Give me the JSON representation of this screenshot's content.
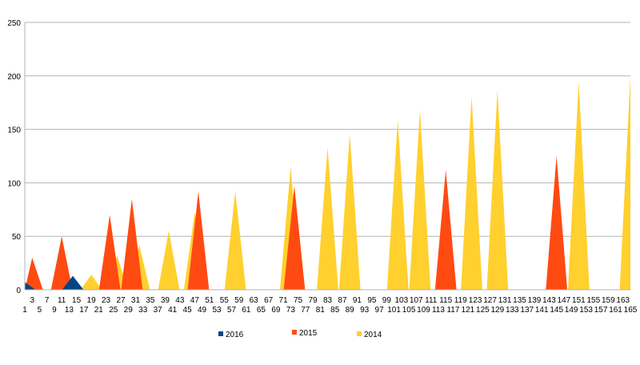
{
  "chart_data": {
    "type": "area",
    "x_range": [
      1,
      165
    ],
    "x_tick_labels_bottom": [
      "1",
      "5",
      "9",
      "13",
      "17",
      "21",
      "25",
      "29",
      "33",
      "37",
      "41",
      "45",
      "49",
      "53",
      "57",
      "61",
      "65",
      "69",
      "73",
      "77",
      "81",
      "85",
      "89",
      "93",
      "97",
      "101",
      "105",
      "109",
      "113",
      "117",
      "121",
      "125",
      "129",
      "133",
      "137",
      "141",
      "145",
      "149",
      "153",
      "157",
      "161",
      "165"
    ],
    "x_tick_labels_top": [
      "3",
      "7",
      "11",
      "15",
      "19",
      "23",
      "27",
      "31",
      "35",
      "39",
      "43",
      "47",
      "51",
      "55",
      "59",
      "63",
      "67",
      "71",
      "75",
      "79",
      "83",
      "87",
      "91",
      "95",
      "99",
      "103",
      "107",
      "111",
      "115",
      "119",
      "123",
      "127",
      "131",
      "135",
      "139",
      "143",
      "147",
      "151",
      "155",
      "159",
      "163"
    ],
    "y_ticks": [
      0,
      50,
      100,
      150,
      200,
      250
    ],
    "ylim": [
      0,
      250
    ],
    "grid": "horizontal",
    "legend_position": "bottom",
    "series": [
      {
        "name": "2014",
        "color": "#FFD02E",
        "points": [
          [
            19,
            14
          ],
          [
            26,
            32
          ],
          [
            32,
            42
          ],
          [
            40,
            55
          ],
          [
            47,
            72
          ],
          [
            58,
            92
          ],
          [
            73,
            115
          ],
          [
            83,
            133
          ],
          [
            89,
            146
          ],
          [
            102,
            159
          ],
          [
            108,
            168
          ],
          [
            122,
            181
          ],
          [
            129,
            187
          ],
          [
            151,
            195
          ],
          [
            165,
            200
          ]
        ]
      },
      {
        "name": "2015",
        "color": "#FF4A12",
        "points": [
          [
            3,
            30
          ],
          [
            11,
            50
          ],
          [
            24,
            70
          ],
          [
            30,
            85
          ],
          [
            48,
            92
          ],
          [
            74,
            97
          ],
          [
            115,
            112
          ],
          [
            145,
            125
          ]
        ]
      },
      {
        "name": "2016",
        "color": "#004586",
        "points": [
          [
            1,
            7
          ],
          [
            14,
            13
          ]
        ]
      }
    ],
    "legend_order": [
      "2016",
      "2015",
      "2014"
    ]
  }
}
